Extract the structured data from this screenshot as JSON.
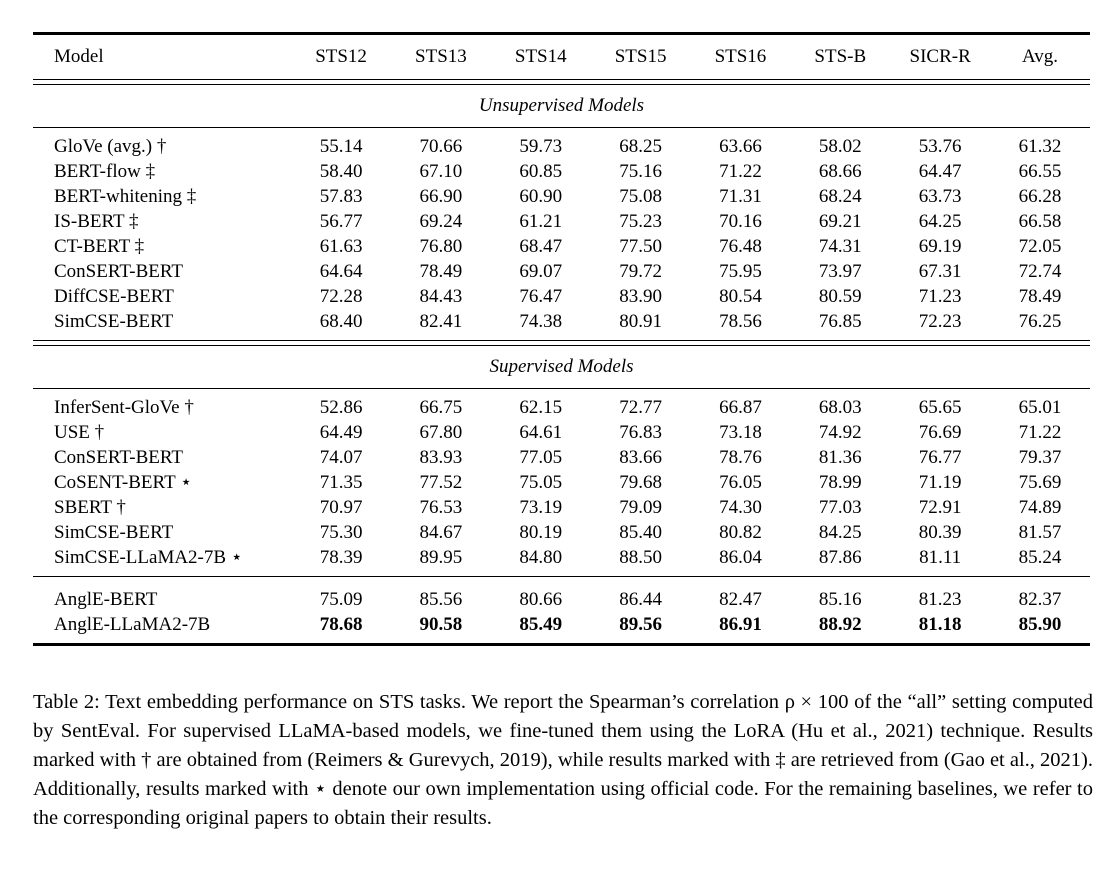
{
  "table": {
    "columns": [
      "Model",
      "STS12",
      "STS13",
      "STS14",
      "STS15",
      "STS16",
      "STS-B",
      "SICR-R",
      "Avg."
    ],
    "sections": [
      {
        "title": "Unsupervised Models",
        "groups": [
          [
            {
              "model": "GloVe (avg.) †",
              "values": [
                "55.14",
                "70.66",
                "59.73",
                "68.25",
                "63.66",
                "58.02",
                "53.76",
                "61.32"
              ]
            },
            {
              "model": "BERT-flow ‡",
              "values": [
                "58.40",
                "67.10",
                "60.85",
                "75.16",
                "71.22",
                "68.66",
                "64.47",
                "66.55"
              ]
            },
            {
              "model": "BERT-whitening ‡",
              "values": [
                "57.83",
                "66.90",
                "60.90",
                "75.08",
                "71.31",
                "68.24",
                "63.73",
                "66.28"
              ]
            },
            {
              "model": "IS-BERT ‡",
              "values": [
                "56.77",
                "69.24",
                "61.21",
                "75.23",
                "70.16",
                "69.21",
                "64.25",
                "66.58"
              ]
            },
            {
              "model": "CT-BERT ‡",
              "values": [
                "61.63",
                "76.80",
                "68.47",
                "77.50",
                "76.48",
                "74.31",
                "69.19",
                "72.05"
              ]
            },
            {
              "model": "ConSERT-BERT",
              "values": [
                "64.64",
                "78.49",
                "69.07",
                "79.72",
                "75.95",
                "73.97",
                "67.31",
                "72.74"
              ]
            },
            {
              "model": "DiffCSE-BERT",
              "values": [
                "72.28",
                "84.43",
                "76.47",
                "83.90",
                "80.54",
                "80.59",
                "71.23",
                "78.49"
              ]
            },
            {
              "model": "SimCSE-BERT",
              "values": [
                "68.40",
                "82.41",
                "74.38",
                "80.91",
                "78.56",
                "76.85",
                "72.23",
                "76.25"
              ]
            }
          ]
        ]
      },
      {
        "title": "Supervised Models",
        "groups": [
          [
            {
              "model": "InferSent-GloVe †",
              "values": [
                "52.86",
                "66.75",
                "62.15",
                "72.77",
                "66.87",
                "68.03",
                "65.65",
                "65.01"
              ]
            },
            {
              "model": "USE †",
              "values": [
                "64.49",
                "67.80",
                "64.61",
                "76.83",
                "73.18",
                "74.92",
                "76.69",
                "71.22"
              ]
            },
            {
              "model": "ConSERT-BERT",
              "values": [
                "74.07",
                "83.93",
                "77.05",
                "83.66",
                "78.76",
                "81.36",
                "76.77",
                "79.37"
              ]
            },
            {
              "model": "CoSENT-BERT ⋆",
              "values": [
                "71.35",
                "77.52",
                "75.05",
                "79.68",
                "76.05",
                "78.99",
                "71.19",
                "75.69"
              ]
            },
            {
              "model": "SBERT †",
              "values": [
                "70.97",
                "76.53",
                "73.19",
                "79.09",
                "74.30",
                "77.03",
                "72.91",
                "74.89"
              ]
            },
            {
              "model": "SimCSE-BERT",
              "values": [
                "75.30",
                "84.67",
                "80.19",
                "85.40",
                "80.82",
                "84.25",
                "80.39",
                "81.57"
              ]
            },
            {
              "model": "SimCSE-LLaMA2-7B ⋆",
              "values": [
                "78.39",
                "89.95",
                "84.80",
                "88.50",
                "86.04",
                "87.86",
                "81.11",
                "85.24"
              ]
            }
          ],
          [
            {
              "model": "AnglE-BERT",
              "values": [
                "75.09",
                "85.56",
                "80.66",
                "86.44",
                "82.47",
                "85.16",
                "81.23",
                "82.37"
              ]
            },
            {
              "model": "AnglE-LLaMA2-7B",
              "bold_values": true,
              "values": [
                "78.68",
                "90.58",
                "85.49",
                "89.56",
                "86.91",
                "88.92",
                "81.18",
                "85.90"
              ]
            }
          ]
        ]
      }
    ]
  },
  "caption": {
    "text": "Table 2: Text embedding performance on STS tasks.  We report the Spearman’s correlation ρ × 100 of the “all” setting computed by SentEval.  For supervised LLaMA-based models, we fine-tuned them using the LoRA (Hu et al., 2021) technique.  Results marked with † are obtained from (Reimers & Gurevych, 2019), while results marked with ‡ are retrieved from (Gao et al., 2021). Additionally, results marked with ⋆ denote our own implementation using official code.  For the remaining baselines, we refer to the corresponding original papers to obtain their results."
  }
}
